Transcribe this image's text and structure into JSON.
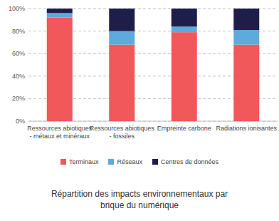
{
  "chart_data": {
    "type": "bar",
    "stacked": true,
    "grid": true,
    "title": "Répartition des impacts environnementaux par brique du numérique",
    "categories": [
      "Ressources abiotiques - métaux et minéraux",
      "Ressources abiotiques - fossiles",
      "Empreinte carbone",
      "Radiations ionisantes"
    ],
    "series": [
      {
        "name": "Terminaux",
        "color": "#f0585a",
        "values": [
          92,
          68,
          79,
          68
        ]
      },
      {
        "name": "Réseaux",
        "color": "#5ea9dd",
        "values": [
          4,
          12,
          5,
          13
        ]
      },
      {
        "name": "Centres de données",
        "color": "#1f1e4a",
        "values": [
          4,
          20,
          16,
          19
        ]
      }
    ],
    "ylim": [
      0,
      100
    ],
    "yticks": [
      {
        "value": 0,
        "label": "0%"
      },
      {
        "value": 20,
        "label": "20%"
      },
      {
        "value": 40,
        "label": "40%"
      },
      {
        "value": 60,
        "label": "60%"
      },
      {
        "value": 80,
        "label": "80%"
      },
      {
        "value": 100,
        "label": "100%"
      }
    ],
    "legend": "bottom"
  }
}
